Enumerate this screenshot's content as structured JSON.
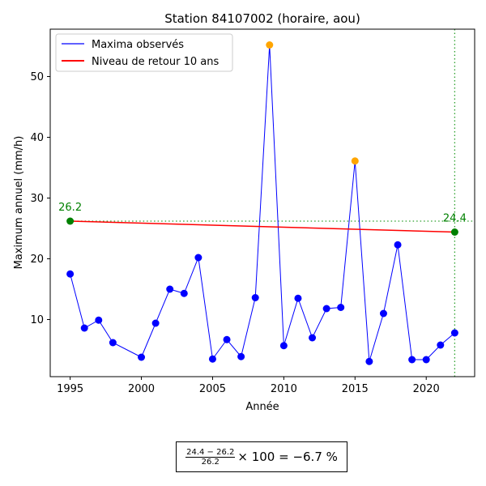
{
  "chart_data": {
    "type": "line",
    "title": "Station 84107002 (horaire, aou)",
    "xlabel": "Année",
    "ylabel": "Maximum annuel (mm/h)",
    "xlim": [
      1993.6,
      2023.4
    ],
    "ylim": [
      0.6,
      57.8
    ],
    "xticks": [
      1995,
      2000,
      2005,
      2010,
      2015,
      2020
    ],
    "yticks": [
      10,
      20,
      30,
      40,
      50
    ],
    "legend_position": "upper-left",
    "series": [
      {
        "name": "Maxima observés",
        "color": "#0000ff",
        "x": [
          1995,
          1996,
          1997,
          1998,
          2000,
          2001,
          2002,
          2003,
          2004,
          2005,
          2006,
          2007,
          2008,
          2009,
          2010,
          2011,
          2012,
          2013,
          2014,
          2015,
          2016,
          2017,
          2018,
          2019,
          2020,
          2021,
          2022
        ],
        "y": [
          17.5,
          8.6,
          9.9,
          6.2,
          3.8,
          9.4,
          15.0,
          14.3,
          20.2,
          3.5,
          6.7,
          3.9,
          13.6,
          55.2,
          5.7,
          13.5,
          7.0,
          11.8,
          12.0,
          36.1,
          3.1,
          11.0,
          22.3,
          3.4,
          3.4,
          5.8,
          7.8
        ],
        "highlighted_x": [
          2009,
          2015
        ],
        "highlight_color": "#ffa500"
      },
      {
        "name": "Niveau de retour 10 ans",
        "color": "#ff0000",
        "x": [
          1995,
          2022
        ],
        "y": [
          26.2,
          24.4
        ]
      }
    ],
    "reference_line": {
      "y": 26.2,
      "color": "#2ca02c",
      "style": "dotted"
    },
    "vertical_line": {
      "x": 2022,
      "color": "#2ca02c",
      "style": "dotted"
    },
    "annotations": [
      {
        "text": "26.2",
        "x": 1995,
        "y": 26.2,
        "color": "#008000"
      },
      {
        "text": "24.4",
        "x": 2022,
        "y": 24.4,
        "color": "#008000"
      }
    ],
    "formula": {
      "numerator": "24.4 − 26.2",
      "denominator": "26.2",
      "rest": "× 100 = −6.7 %"
    }
  }
}
